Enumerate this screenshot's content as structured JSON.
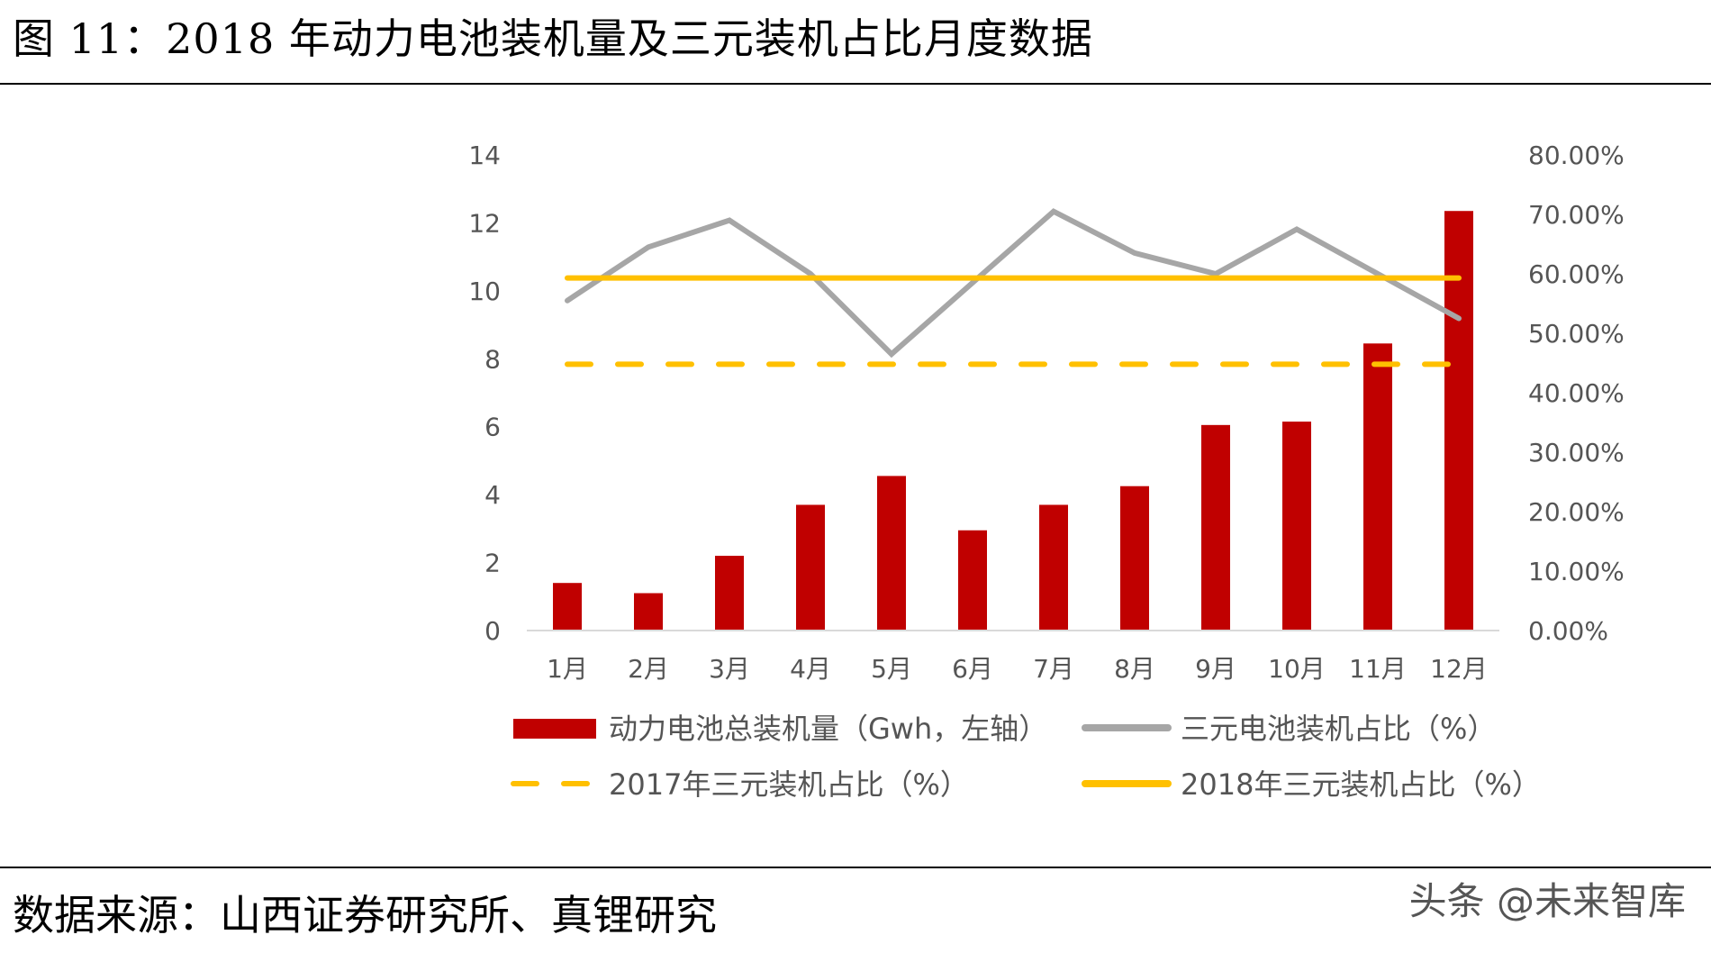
{
  "figure": {
    "title": "图 11：2018 年动力电池装机量及三元装机占比月度数据",
    "source": "数据来源：山西证券研究所、真锂研究",
    "watermark": "头条 @未来智库"
  },
  "colors": {
    "bar": "#c00000",
    "line_ternary": "#a6a6a6",
    "line_2017": "#ffc000",
    "line_2018": "#ffc000",
    "axis": "#d9d9d9",
    "text": "#555555"
  },
  "chart_data": {
    "type": "bar",
    "categories": [
      "1月",
      "2月",
      "3月",
      "4月",
      "5月",
      "6月",
      "7月",
      "8月",
      "9月",
      "10月",
      "11月",
      "12月"
    ],
    "left_axis": {
      "ylim": [
        0,
        14
      ],
      "ticks": [
        "0",
        "2",
        "4",
        "6",
        "8",
        "10",
        "12",
        "14"
      ]
    },
    "right_axis": {
      "ylim": [
        0,
        80
      ],
      "ticks": [
        "0.00%",
        "10.00%",
        "20.00%",
        "30.00%",
        "40.00%",
        "50.00%",
        "60.00%",
        "70.00%",
        "80.00%"
      ]
    },
    "series": [
      {
        "name": "动力电池总装机量（Gwh，左轴）",
        "kind": "bar",
        "axis": "left",
        "values": [
          1.4,
          1.1,
          2.2,
          3.7,
          4.55,
          2.95,
          3.7,
          4.25,
          6.05,
          6.15,
          8.45,
          12.35
        ]
      },
      {
        "name": "三元电池装机占比（%）",
        "kind": "line",
        "axis": "right",
        "values": [
          55.5,
          64.5,
          69.0,
          60.0,
          46.5,
          58.5,
          70.5,
          63.5,
          60.0,
          67.5,
          60.0,
          52.5
        ]
      },
      {
        "name": "2017年三元装机占比（%）",
        "kind": "dashed",
        "axis": "right",
        "values": [
          44.8,
          44.8,
          44.8,
          44.8,
          44.8,
          44.8,
          44.8,
          44.8,
          44.8,
          44.8,
          44.8,
          44.8
        ]
      },
      {
        "name": "2018年三元装机占比（%）",
        "kind": "line",
        "axis": "right",
        "values": [
          59.3,
          59.3,
          59.3,
          59.3,
          59.3,
          59.3,
          59.3,
          59.3,
          59.3,
          59.3,
          59.3,
          59.3
        ]
      }
    ],
    "title": "",
    "xlabel": "",
    "ylabel": "",
    "grid": false,
    "legend": "bottom"
  }
}
